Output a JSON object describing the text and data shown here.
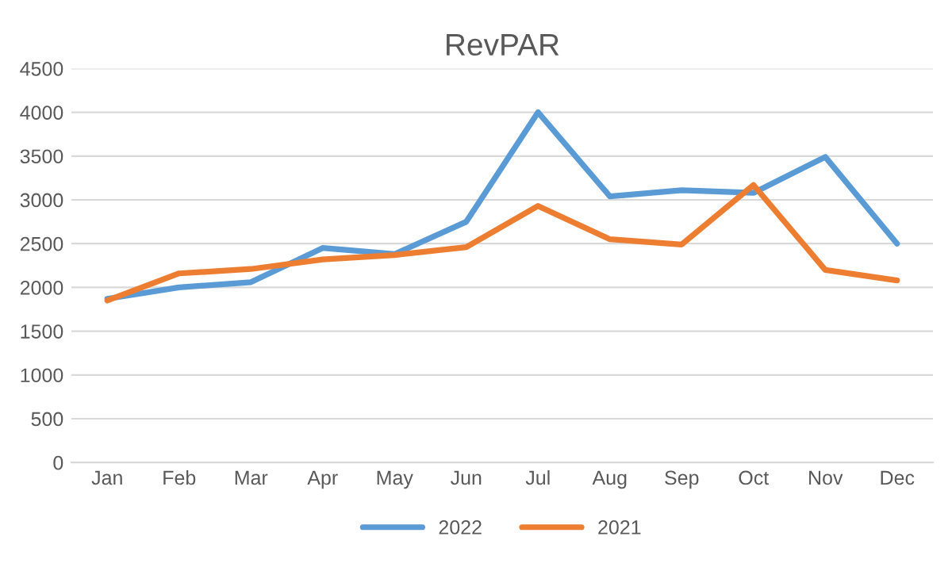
{
  "chart_data": {
    "type": "line",
    "title": "RevPAR",
    "categories": [
      "Jan",
      "Feb",
      "Mar",
      "Apr",
      "May",
      "Jun",
      "Jul",
      "Aug",
      "Sep",
      "Oct",
      "Nov",
      "Dec"
    ],
    "series": [
      {
        "name": "2022",
        "color": "#5b9bd5",
        "values": [
          1870,
          2000,
          2060,
          2450,
          2380,
          2750,
          4000,
          3040,
          3110,
          3080,
          3490,
          2500
        ]
      },
      {
        "name": "2021",
        "color": "#ed7d31",
        "values": [
          1850,
          2160,
          2210,
          2320,
          2370,
          2460,
          2930,
          2550,
          2490,
          3170,
          2200,
          2080
        ]
      }
    ],
    "ylim": [
      0,
      4500
    ],
    "yticks": [
      0,
      500,
      1000,
      1500,
      2000,
      2500,
      3000,
      3500,
      4000,
      4500
    ],
    "grid": "y",
    "legend": "bottom",
    "marker": "none",
    "line_style": "solid"
  }
}
